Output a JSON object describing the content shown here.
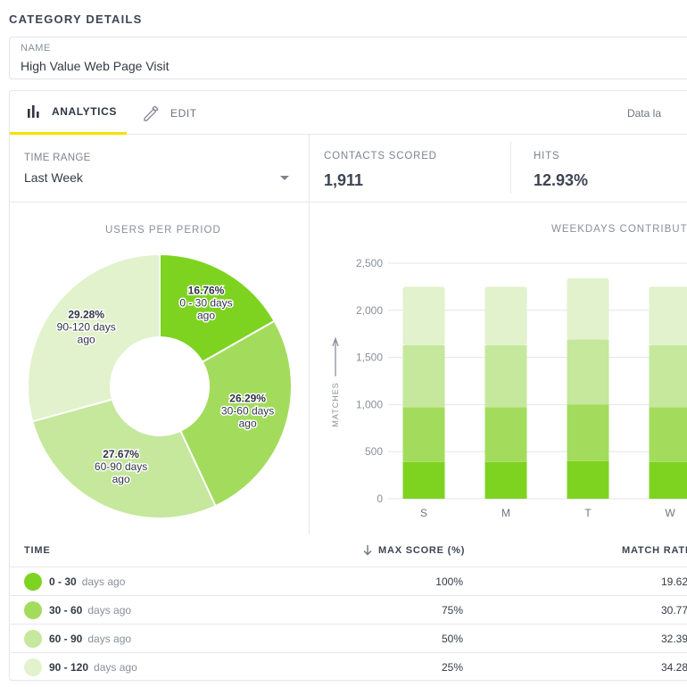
{
  "section": {
    "title": "CATEGORY DETAILS"
  },
  "name_field": {
    "label": "NAME",
    "value": "High Value Web Page Visit"
  },
  "tabs": [
    {
      "label": "ANALYTICS",
      "icon": "bar-chart-icon",
      "active": true
    },
    {
      "label": "EDIT",
      "icon": "pencil-icon",
      "active": false
    }
  ],
  "data_label": "Data la",
  "time_range": {
    "label": "TIME RANGE",
    "value": "Last Week"
  },
  "stats": [
    {
      "label": "CONTACTS SCORED",
      "value": "1,911"
    },
    {
      "label": "HITS",
      "value": "12.93%"
    }
  ],
  "colors": {
    "tab_accent": "#f5e000",
    "green1": "#7ed321",
    "green2": "#a3dc5c",
    "green3": "#c5e89c",
    "green4": "#e1f2cc"
  },
  "chart_data": [
    {
      "type": "pie",
      "title": "USERS PER PERIOD",
      "slices": [
        {
          "pct": "16.76%",
          "line1": "0 - 30 days",
          "line2": "ago",
          "value": 16.76,
          "color": "#7ed321"
        },
        {
          "pct": "26.29%",
          "line1": "30-60 days",
          "line2": "ago",
          "value": 26.29,
          "color": "#a3dc5c"
        },
        {
          "pct": "27.67%",
          "line1": "60-90 days",
          "line2": "ago",
          "value": 27.67,
          "color": "#c5e89c"
        },
        {
          "pct": "29.28%",
          "line1": "90-120 days",
          "line2": "ago",
          "value": 29.28,
          "color": "#e1f2cc"
        }
      ]
    },
    {
      "type": "bar",
      "title": "WEEKDAYS CONTRIBUTI",
      "ylabel": "MATCHES",
      "ylim": [
        0,
        2500
      ],
      "yticks": [
        "0",
        "500",
        "1,000",
        "1,500",
        "2,000",
        "2,500"
      ],
      "categories": [
        "S",
        "M",
        "T",
        "W"
      ],
      "stack_colors": [
        "#7ed321",
        "#a3dc5c",
        "#c5e89c",
        "#e1f2cc"
      ],
      "stacks": [
        [
          390,
          580,
          660,
          620
        ],
        [
          390,
          580,
          660,
          620
        ],
        [
          400,
          600,
          690,
          650
        ],
        [
          390,
          580,
          660,
          620
        ]
      ]
    }
  ],
  "table": {
    "headers": {
      "time": "TIME",
      "max_score": "MAX SCORE (%)",
      "match_rate": "MATCH RATE"
    },
    "rows": [
      {
        "range": "0 - 30",
        "days": "days ago",
        "max_score": "100%",
        "match_rate": "19.62",
        "color": "#7ed321"
      },
      {
        "range": "30 - 60",
        "days": "days ago",
        "max_score": "75%",
        "match_rate": "30.77",
        "color": "#a3dc5c"
      },
      {
        "range": "60 - 90",
        "days": "days ago",
        "max_score": "50%",
        "match_rate": "32.39",
        "color": "#c5e89c"
      },
      {
        "range": "90 - 120",
        "days": "days ago",
        "max_score": "25%",
        "match_rate": "34.28",
        "color": "#e1f2cc"
      }
    ]
  }
}
